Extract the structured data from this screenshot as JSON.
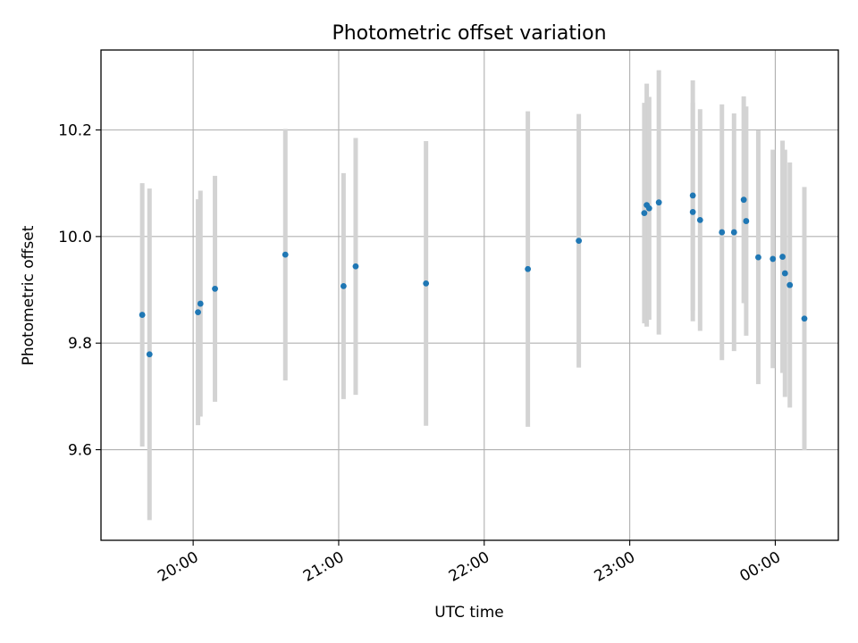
{
  "chart_data": {
    "type": "scatter",
    "title": "Photometric offset variation",
    "xlabel": "UTC time",
    "ylabel": "Photometric offset",
    "grid": true,
    "legend": "none",
    "x_ticks": [
      "20:00",
      "21:00",
      "22:00",
      "23:00",
      "00:00"
    ],
    "y_ticks": [
      "9.6",
      "9.8",
      "10.0",
      "10.2"
    ],
    "xlim": [
      "19:22",
      "00:26"
    ],
    "ylim": [
      9.43,
      10.35
    ],
    "marker_color": "#1f77b4",
    "errorbar_color": "#d3d3d3",
    "series": [
      {
        "points": [
          {
            "x": "19:39",
            "y": 9.853,
            "yerr": 0.247
          },
          {
            "x": "19:42",
            "y": 9.779,
            "yerr": 0.311
          },
          {
            "x": "20:02",
            "y": 9.858,
            "yerr": 0.212
          },
          {
            "x": "20:03",
            "y": 9.874,
            "yerr": 0.212
          },
          {
            "x": "20:09",
            "y": 9.902,
            "yerr": 0.212
          },
          {
            "x": "20:38",
            "y": 9.966,
            "yerr": 0.236
          },
          {
            "x": "21:02",
            "y": 9.907,
            "yerr": 0.212
          },
          {
            "x": "21:07",
            "y": 9.944,
            "yerr": 0.241
          },
          {
            "x": "21:36",
            "y": 9.912,
            "yerr": 0.267
          },
          {
            "x": "22:18",
            "y": 9.939,
            "yerr": 0.296
          },
          {
            "x": "22:39",
            "y": 9.992,
            "yerr": 0.238
          },
          {
            "x": "23:06",
            "y": 10.044,
            "yerr": 0.207
          },
          {
            "x": "23:07",
            "y": 10.059,
            "yerr": 0.228
          },
          {
            "x": "23:08",
            "y": 10.053,
            "yerr": 0.209
          },
          {
            "x": "23:12",
            "y": 10.064,
            "yerr": 0.248
          },
          {
            "x": "23:26",
            "y": 10.046,
            "yerr": 0.205
          },
          {
            "x": "23:26",
            "y": 10.077,
            "yerr": 0.216
          },
          {
            "x": "23:29",
            "y": 10.031,
            "yerr": 0.208
          },
          {
            "x": "23:38",
            "y": 10.008,
            "yerr": 0.24
          },
          {
            "x": "23:43",
            "y": 10.008,
            "yerr": 0.223
          },
          {
            "x": "23:47",
            "y": 10.069,
            "yerr": 0.194
          },
          {
            "x": "23:48",
            "y": 10.029,
            "yerr": 0.215
          },
          {
            "x": "23:53",
            "y": 9.961,
            "yerr": 0.238
          },
          {
            "x": "23:59",
            "y": 9.958,
            "yerr": 0.205
          },
          {
            "x": "00:03",
            "y": 9.962,
            "yerr": 0.218
          },
          {
            "x": "00:04",
            "y": 9.931,
            "yerr": 0.232
          },
          {
            "x": "00:06",
            "y": 9.909,
            "yerr": 0.23
          },
          {
            "x": "00:12",
            "y": 9.846,
            "yerr": 0.247
          }
        ]
      }
    ]
  }
}
